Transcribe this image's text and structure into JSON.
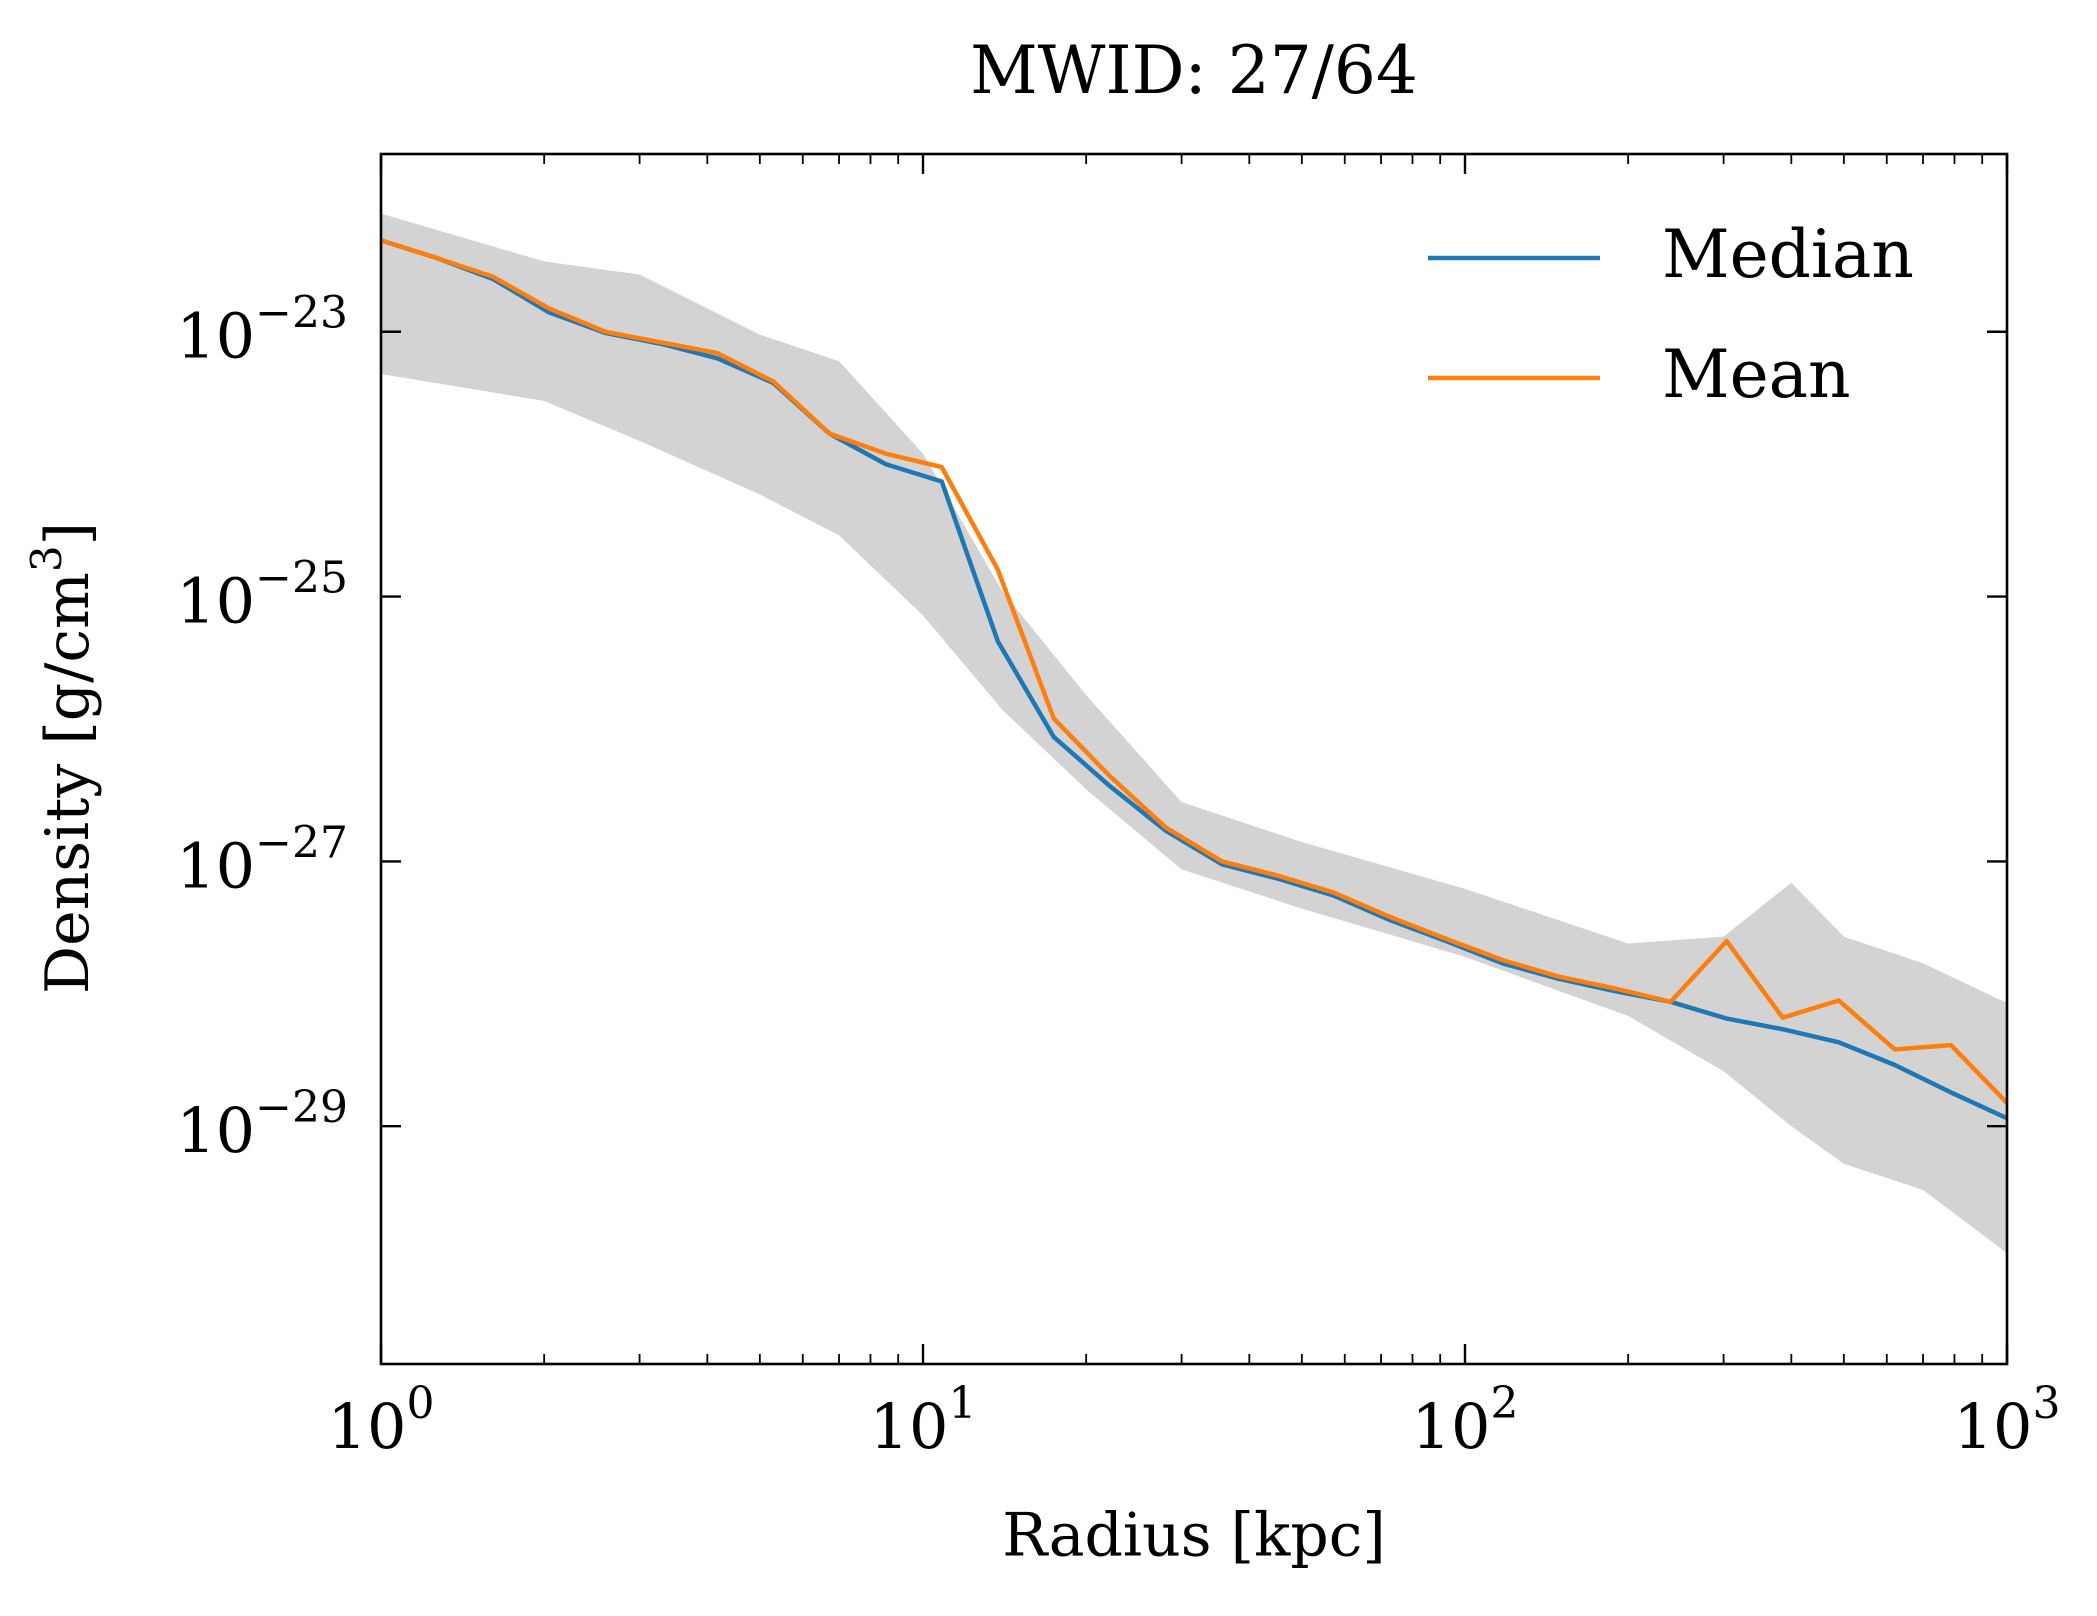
{
  "chart_data": {
    "type": "line",
    "title": "MWID: 27/64",
    "xlabel": "Radius [kpc]",
    "ylabel": "Density [g/cm3]",
    "xlog": true,
    "ylog": true,
    "xlim": [
      1,
      1000
    ],
    "ylim": [
      1.6e-31,
      2.2e-22
    ],
    "xticks": [
      {
        "value": 1,
        "label": "100"
      },
      {
        "value": 10,
        "label": "101"
      },
      {
        "value": 100,
        "label": "102"
      },
      {
        "value": 1000,
        "label": "103"
      }
    ],
    "xticks_minor": [
      2,
      3,
      4,
      5,
      6,
      7,
      8,
      9,
      20,
      30,
      40,
      50,
      60,
      70,
      80,
      90,
      200,
      300,
      400,
      500,
      600,
      700,
      800,
      900
    ],
    "yticks": [
      {
        "value": 1e-23,
        "label": "10−23"
      },
      {
        "value": 1e-25,
        "label": "10−25"
      },
      {
        "value": 1e-27,
        "label": "10−27"
      },
      {
        "value": 1e-29,
        "label": "10−29"
      }
    ],
    "legend": "upper right",
    "x": [
      1,
      1.269,
      1.61,
      2.043,
      2.593,
      3.29,
      4.175,
      5.298,
      6.723,
      8.532,
      10.83,
      13.74,
      17.43,
      22.12,
      28.07,
      35.62,
      45.2,
      57.36,
      72.79,
      92.37,
      117.2,
      148.7,
      188.7,
      239.5,
      303.9,
      385.6,
      489.3,
      621.0,
      788.0,
      1000
    ],
    "series": [
      {
        "name": "Median",
        "color": "#1f77b4",
        "values": [
          4.9e-23,
          3.6e-23,
          2.5e-23,
          1.4e-23,
          9.8e-24,
          8.1e-24,
          6.3e-24,
          4.1e-24,
          1.7e-24,
          1e-24,
          7.4e-25,
          4.6e-26,
          8.7e-27,
          3.7e-27,
          1.7e-27,
          9.5e-28,
          7.4e-28,
          5.5e-28,
          3.6e-28,
          2.5e-28,
          1.7e-28,
          1.3e-28,
          1.05e-28,
          8.7e-29,
          6.5e-29,
          5.4e-29,
          4.3e-29,
          2.9e-29,
          1.8e-29,
          1.15e-29
        ]
      },
      {
        "name": "Mean",
        "color": "#ff7f0e",
        "values": [
          4.9e-23,
          3.6e-23,
          2.6e-23,
          1.5e-23,
          1e-23,
          8.3e-24,
          6.9e-24,
          4.2e-24,
          1.7e-24,
          1.2e-24,
          9.5e-25,
          1.6e-25,
          1.2e-26,
          4.4e-27,
          1.8e-27,
          1e-27,
          7.8e-28,
          5.8e-28,
          3.8e-28,
          2.6e-28,
          1.8e-28,
          1.35e-28,
          1.1e-28,
          8.7e-29,
          2.5e-28,
          6.6e-29,
          8.9e-29,
          3.8e-29,
          4.1e-29,
          1.5e-29
        ]
      }
    ],
    "band": {
      "color": "#d3d3d3",
      "x": [
        1,
        2,
        3,
        5,
        7,
        10,
        14,
        20,
        30,
        50,
        100,
        200,
        300,
        400,
        500,
        700,
        1000
      ],
      "upper": [
        7.8e-23,
        3.4e-23,
        2.7e-23,
        9.5e-24,
        6e-24,
        1.2e-24,
        1.1e-25,
        1.8e-26,
        2.8e-27,
        1.4e-27,
        6.2e-28,
        2.4e-28,
        2.7e-28,
        6.9e-28,
        2.7e-28,
        1.7e-28,
        8.5e-29
      ],
      "lower": [
        4.8e-24,
        3e-24,
        1.5e-24,
        5.9e-25,
        2.9e-25,
        7.2e-26,
        1.4e-26,
        3.5e-27,
        8.7e-28,
        4.4e-28,
        1.9e-28,
        6.8e-29,
        2.6e-29,
        1e-29,
        5.2e-30,
        3.3e-30,
        1.1e-30
      ]
    }
  }
}
